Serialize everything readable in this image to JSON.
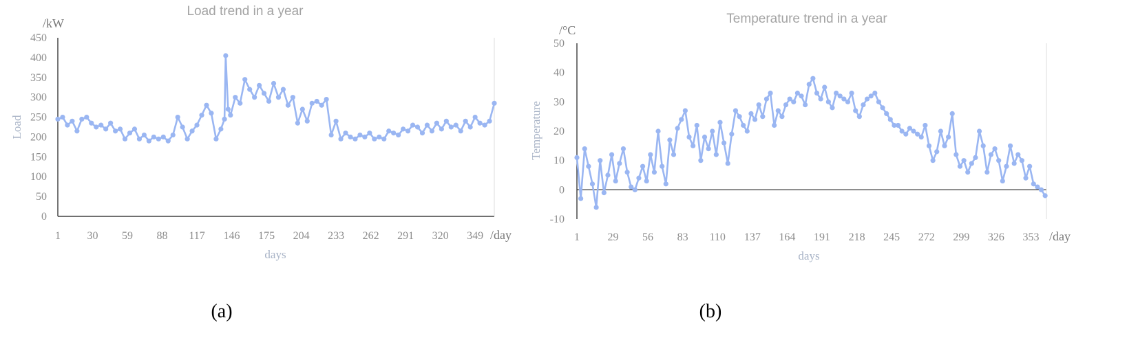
{
  "colors": {
    "series": "#9ab6f2"
  },
  "chart_data": [
    {
      "type": "line",
      "title": "Load trend in a year",
      "xlabel": "days",
      "ylabel": "Load",
      "y_unit": "/kW",
      "x_unit": "/day",
      "caption": "(a)",
      "ylim": [
        0,
        450
      ],
      "y_ticks": [
        0,
        50,
        100,
        150,
        200,
        250,
        300,
        350,
        400,
        450
      ],
      "x_ticks": [
        1,
        30,
        59,
        88,
        117,
        146,
        175,
        204,
        233,
        262,
        291,
        320,
        349
      ],
      "xlim": [
        1,
        365
      ],
      "series": [
        {
          "x": [
            1,
            5,
            9,
            13,
            17,
            21,
            25,
            29,
            33,
            37,
            41,
            45,
            49,
            53,
            57,
            61,
            65,
            69,
            73,
            77,
            81,
            85,
            89,
            93,
            97,
            101,
            105,
            109,
            113,
            117,
            121,
            125,
            129,
            133,
            137,
            140,
            141,
            143,
            145,
            149,
            153,
            157,
            161,
            165,
            169,
            173,
            177,
            181,
            185,
            189,
            193,
            197,
            201,
            205,
            209,
            213,
            217,
            221,
            225,
            229,
            233,
            237,
            241,
            245,
            249,
            253,
            257,
            261,
            265,
            269,
            273,
            277,
            281,
            285,
            289,
            293,
            297,
            301,
            305,
            309,
            313,
            317,
            321,
            325,
            329,
            333,
            337,
            341,
            345,
            349,
            353,
            357,
            361,
            365
          ],
          "values": [
            245,
            250,
            230,
            240,
            215,
            245,
            250,
            235,
            225,
            230,
            220,
            235,
            215,
            220,
            195,
            210,
            220,
            195,
            205,
            190,
            200,
            195,
            200,
            190,
            205,
            250,
            225,
            195,
            215,
            230,
            255,
            280,
            260,
            195,
            220,
            245,
            405,
            270,
            255,
            300,
            285,
            345,
            320,
            300,
            330,
            310,
            290,
            335,
            300,
            320,
            280,
            300,
            235,
            270,
            240,
            285,
            290,
            280,
            295,
            205,
            240,
            195,
            210,
            200,
            195,
            205,
            200,
            210,
            195,
            200,
            195,
            215,
            210,
            205,
            220,
            215,
            230,
            225,
            210,
            230,
            215,
            235,
            220,
            240,
            225,
            230,
            215,
            240,
            225,
            250,
            235,
            230,
            240,
            285
          ]
        }
      ]
    },
    {
      "type": "line",
      "title": "Temperature trend in a year",
      "xlabel": "days",
      "ylabel": "Temperature",
      "y_unit": "/°C",
      "x_unit": "/day",
      "caption": "(b)",
      "ylim": [
        -10,
        50
      ],
      "y_ticks": [
        -10,
        0,
        10,
        20,
        30,
        40,
        50
      ],
      "x_ticks": [
        1,
        29,
        56,
        83,
        110,
        137,
        164,
        191,
        218,
        245,
        272,
        299,
        326,
        353
      ],
      "xlim": [
        1,
        365
      ],
      "series": [
        {
          "x": [
            1,
            4,
            7,
            10,
            13,
            16,
            19,
            22,
            25,
            28,
            31,
            34,
            37,
            40,
            43,
            46,
            49,
            52,
            55,
            58,
            61,
            64,
            67,
            70,
            73,
            76,
            79,
            82,
            85,
            88,
            91,
            94,
            97,
            100,
            103,
            106,
            109,
            112,
            115,
            118,
            121,
            124,
            127,
            130,
            133,
            136,
            139,
            142,
            145,
            148,
            151,
            154,
            157,
            160,
            163,
            166,
            169,
            172,
            175,
            178,
            181,
            184,
            187,
            190,
            193,
            196,
            199,
            202,
            205,
            208,
            211,
            214,
            217,
            220,
            223,
            226,
            229,
            232,
            235,
            238,
            241,
            244,
            247,
            250,
            253,
            256,
            259,
            262,
            265,
            268,
            271,
            274,
            277,
            280,
            283,
            286,
            289,
            292,
            295,
            298,
            301,
            304,
            307,
            310,
            313,
            316,
            319,
            322,
            325,
            328,
            331,
            334,
            337,
            340,
            343,
            346,
            349,
            352,
            355,
            358,
            361,
            364
          ],
          "values": [
            11,
            -3,
            14,
            8,
            2,
            -6,
            10,
            -1,
            5,
            12,
            3,
            9,
            14,
            6,
            1,
            0,
            4,
            8,
            3,
            12,
            6,
            20,
            8,
            2,
            17,
            12,
            21,
            24,
            27,
            18,
            15,
            22,
            10,
            18,
            14,
            20,
            12,
            23,
            16,
            9,
            19,
            27,
            25,
            22,
            20,
            26,
            24,
            29,
            25,
            31,
            33,
            22,
            27,
            25,
            29,
            31,
            30,
            33,
            32,
            29,
            36,
            38,
            33,
            31,
            35,
            30,
            28,
            33,
            32,
            31,
            30,
            33,
            27,
            25,
            29,
            31,
            32,
            33,
            30,
            28,
            26,
            24,
            22,
            22,
            20,
            19,
            21,
            20,
            19,
            18,
            22,
            15,
            10,
            13,
            20,
            15,
            18,
            26,
            12,
            8,
            10,
            6,
            9,
            11,
            20,
            15,
            6,
            12,
            14,
            10,
            3,
            8,
            15,
            9,
            12,
            10,
            4,
            8,
            2,
            1,
            0,
            -2
          ]
        }
      ]
    }
  ]
}
